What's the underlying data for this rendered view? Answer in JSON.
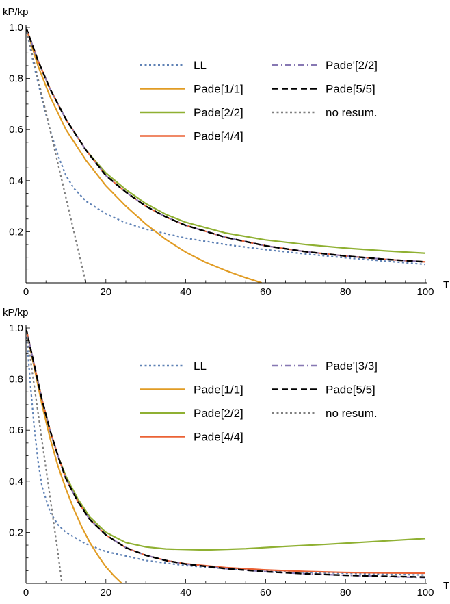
{
  "chart_data": [
    {
      "type": "line",
      "title": "",
      "xlabel": "T",
      "ylabel": "kP/kp",
      "xlim": [
        0,
        100
      ],
      "ylim": [
        0,
        1.0
      ],
      "xticks": [
        0,
        20,
        40,
        60,
        80,
        100
      ],
      "xtick_labels": [
        "0",
        "20",
        "40",
        "60",
        "80",
        "100"
      ],
      "yticks": [
        0.2,
        0.4,
        0.6,
        0.8,
        1.0
      ],
      "ytick_labels": [
        "0.2",
        "0.4",
        "0.6",
        "0.8",
        "1.0"
      ],
      "legend_position": "top-right",
      "series": [
        {
          "name": "LL",
          "color": "#5E81B5",
          "dash": "dotted",
          "points": [
            [
              0,
              1.0
            ],
            [
              2,
              0.85
            ],
            [
              4,
              0.72
            ],
            [
              6,
              0.6
            ],
            [
              8,
              0.5
            ],
            [
              10,
              0.42
            ],
            [
              12,
              0.37
            ],
            [
              15,
              0.32
            ],
            [
              20,
              0.27
            ],
            [
              25,
              0.235
            ],
            [
              30,
              0.21
            ],
            [
              40,
              0.175
            ],
            [
              50,
              0.15
            ],
            [
              60,
              0.13
            ],
            [
              70,
              0.113
            ],
            [
              80,
              0.098
            ],
            [
              90,
              0.085
            ],
            [
              100,
              0.072
            ]
          ]
        },
        {
          "name": "Pade[1/1]",
          "color": "#E19C24",
          "dash": "solid",
          "points": [
            [
              0,
              1.0
            ],
            [
              3,
              0.85
            ],
            [
              6,
              0.73
            ],
            [
              10,
              0.6
            ],
            [
              15,
              0.48
            ],
            [
              20,
              0.38
            ],
            [
              25,
              0.3
            ],
            [
              30,
              0.23
            ],
            [
              35,
              0.17
            ],
            [
              40,
              0.12
            ],
            [
              45,
              0.08
            ],
            [
              50,
              0.048
            ],
            [
              55,
              0.02
            ],
            [
              59,
              0.0
            ]
          ]
        },
        {
          "name": "Pade[2/2]",
          "color": "#8FB032",
          "dash": "solid",
          "points": [
            [
              0,
              1.0
            ],
            [
              3,
              0.87
            ],
            [
              6,
              0.76
            ],
            [
              10,
              0.64
            ],
            [
              15,
              0.52
            ],
            [
              20,
              0.43
            ],
            [
              25,
              0.365
            ],
            [
              30,
              0.31
            ],
            [
              35,
              0.268
            ],
            [
              40,
              0.237
            ],
            [
              50,
              0.195
            ],
            [
              60,
              0.168
            ],
            [
              70,
              0.15
            ],
            [
              80,
              0.136
            ],
            [
              90,
              0.125
            ],
            [
              100,
              0.116
            ]
          ]
        },
        {
          "name": "Pade[4/4]",
          "color": "#EB6235",
          "dash": "solid",
          "points": [
            [
              0,
              1.0
            ],
            [
              3,
              0.87
            ],
            [
              6,
              0.76
            ],
            [
              10,
              0.64
            ],
            [
              15,
              0.52
            ],
            [
              20,
              0.42
            ],
            [
              25,
              0.355
            ],
            [
              30,
              0.3
            ],
            [
              35,
              0.258
            ],
            [
              40,
              0.225
            ],
            [
              50,
              0.178
            ],
            [
              60,
              0.145
            ],
            [
              70,
              0.122
            ],
            [
              80,
              0.105
            ],
            [
              90,
              0.092
            ],
            [
              100,
              0.082
            ]
          ]
        },
        {
          "name": "Pade'[2/2]",
          "color": "#8778B3",
          "dash": "dashdot",
          "points": [
            [
              0,
              1.0
            ],
            [
              3,
              0.87
            ],
            [
              6,
              0.76
            ],
            [
              10,
              0.64
            ],
            [
              15,
              0.52
            ],
            [
              20,
              0.42
            ],
            [
              25,
              0.355
            ],
            [
              30,
              0.3
            ],
            [
              35,
              0.258
            ],
            [
              40,
              0.225
            ],
            [
              50,
              0.178
            ],
            [
              60,
              0.145
            ],
            [
              70,
              0.122
            ],
            [
              80,
              0.105
            ],
            [
              90,
              0.092
            ],
            [
              100,
              0.082
            ]
          ]
        },
        {
          "name": "Pade[5/5]",
          "color": "#000000",
          "dash": "dashed",
          "points": [
            [
              0,
              1.0
            ],
            [
              3,
              0.87
            ],
            [
              6,
              0.76
            ],
            [
              10,
              0.64
            ],
            [
              15,
              0.52
            ],
            [
              20,
              0.42
            ],
            [
              25,
              0.355
            ],
            [
              30,
              0.3
            ],
            [
              35,
              0.258
            ],
            [
              40,
              0.225
            ],
            [
              50,
              0.178
            ],
            [
              60,
              0.145
            ],
            [
              70,
              0.122
            ],
            [
              80,
              0.105
            ],
            [
              90,
              0.092
            ],
            [
              100,
              0.082
            ]
          ]
        },
        {
          "name": "no resum.",
          "color": "#7F7F7F",
          "dash": "dotted",
          "points": [
            [
              0,
              1.0
            ],
            [
              3,
              0.8
            ],
            [
              6,
              0.6
            ],
            [
              9,
              0.4
            ],
            [
              12,
              0.2
            ],
            [
              15,
              0.0
            ]
          ]
        }
      ]
    },
    {
      "type": "line",
      "title": "",
      "xlabel": "T",
      "ylabel": "kP/kp",
      "xlim": [
        0,
        100
      ],
      "ylim": [
        0,
        1.0
      ],
      "xticks": [
        0,
        20,
        40,
        60,
        80,
        100
      ],
      "xtick_labels": [
        "0",
        "20",
        "40",
        "60",
        "80",
        "100"
      ],
      "yticks": [
        0.2,
        0.4,
        0.6,
        0.8,
        1.0
      ],
      "ytick_labels": [
        "0.2",
        "0.4",
        "0.6",
        "0.8",
        "1.0"
      ],
      "legend_position": "top-right",
      "series": [
        {
          "name": "LL",
          "color": "#5E81B5",
          "dash": "dotted",
          "points": [
            [
              0,
              1.0
            ],
            [
              1,
              0.8
            ],
            [
              2,
              0.62
            ],
            [
              3,
              0.48
            ],
            [
              4,
              0.38
            ],
            [
              6,
              0.28
            ],
            [
              8,
              0.23
            ],
            [
              10,
              0.2
            ],
            [
              15,
              0.155
            ],
            [
              20,
              0.125
            ],
            [
              30,
              0.09
            ],
            [
              40,
              0.07
            ],
            [
              50,
              0.058
            ],
            [
              60,
              0.05
            ],
            [
              70,
              0.044
            ],
            [
              80,
              0.04
            ],
            [
              90,
              0.036
            ],
            [
              100,
              0.033
            ]
          ]
        },
        {
          "name": "Pade[1/1]",
          "color": "#E19C24",
          "dash": "solid",
          "points": [
            [
              0,
              1.0
            ],
            [
              2,
              0.85
            ],
            [
              4,
              0.7
            ],
            [
              6,
              0.57
            ],
            [
              8,
              0.46
            ],
            [
              10,
              0.37
            ],
            [
              12,
              0.29
            ],
            [
              14,
              0.22
            ],
            [
              16,
              0.16
            ],
            [
              18,
              0.11
            ],
            [
              20,
              0.065
            ],
            [
              22,
              0.03
            ],
            [
              24,
              0.0
            ]
          ]
        },
        {
          "name": "Pade[2/2]",
          "color": "#8FB032",
          "dash": "solid",
          "points": [
            [
              0,
              1.0
            ],
            [
              2,
              0.86
            ],
            [
              4,
              0.72
            ],
            [
              6,
              0.6
            ],
            [
              8,
              0.5
            ],
            [
              10,
              0.42
            ],
            [
              13,
              0.33
            ],
            [
              16,
              0.26
            ],
            [
              20,
              0.2
            ],
            [
              25,
              0.16
            ],
            [
              30,
              0.143
            ],
            [
              35,
              0.135
            ],
            [
              45,
              0.131
            ],
            [
              55,
              0.136
            ],
            [
              65,
              0.145
            ],
            [
              75,
              0.153
            ],
            [
              85,
              0.162
            ],
            [
              100,
              0.176
            ]
          ]
        },
        {
          "name": "Pade[4/4]",
          "color": "#EB6235",
          "dash": "solid",
          "points": [
            [
              0,
              1.0
            ],
            [
              2,
              0.86
            ],
            [
              4,
              0.72
            ],
            [
              6,
              0.6
            ],
            [
              8,
              0.5
            ],
            [
              10,
              0.41
            ],
            [
              13,
              0.32
            ],
            [
              16,
              0.25
            ],
            [
              20,
              0.19
            ],
            [
              25,
              0.14
            ],
            [
              30,
              0.11
            ],
            [
              35,
              0.09
            ],
            [
              40,
              0.077
            ],
            [
              50,
              0.062
            ],
            [
              60,
              0.053
            ],
            [
              70,
              0.047
            ],
            [
              80,
              0.043
            ],
            [
              90,
              0.041
            ],
            [
              100,
              0.04
            ]
          ]
        },
        {
          "name": "Pade'[3/3]",
          "color": "#8778B3",
          "dash": "dashdot",
          "points": [
            [
              0,
              1.0
            ],
            [
              2,
              0.86
            ],
            [
              4,
              0.72
            ],
            [
              6,
              0.6
            ],
            [
              8,
              0.5
            ],
            [
              10,
              0.41
            ],
            [
              13,
              0.32
            ],
            [
              16,
              0.25
            ],
            [
              20,
              0.19
            ],
            [
              25,
              0.14
            ],
            [
              30,
              0.11
            ],
            [
              35,
              0.09
            ],
            [
              40,
              0.076
            ],
            [
              50,
              0.058
            ],
            [
              60,
              0.046
            ],
            [
              70,
              0.038
            ],
            [
              80,
              0.032
            ],
            [
              90,
              0.027
            ],
            [
              100,
              0.023
            ]
          ]
        },
        {
          "name": "Pade[5/5]",
          "color": "#000000",
          "dash": "dashed",
          "points": [
            [
              0,
              1.0
            ],
            [
              2,
              0.86
            ],
            [
              4,
              0.72
            ],
            [
              6,
              0.6
            ],
            [
              8,
              0.5
            ],
            [
              10,
              0.41
            ],
            [
              13,
              0.32
            ],
            [
              16,
              0.25
            ],
            [
              20,
              0.19
            ],
            [
              25,
              0.14
            ],
            [
              30,
              0.11
            ],
            [
              35,
              0.09
            ],
            [
              40,
              0.076
            ],
            [
              50,
              0.058
            ],
            [
              60,
              0.046
            ],
            [
              70,
              0.038
            ],
            [
              80,
              0.032
            ],
            [
              90,
              0.028
            ],
            [
              100,
              0.025
            ]
          ]
        },
        {
          "name": "no resum.",
          "color": "#7F7F7F",
          "dash": "dotted",
          "points": [
            [
              0,
              1.0
            ],
            [
              2,
              0.78
            ],
            [
              4,
              0.56
            ],
            [
              6,
              0.34
            ],
            [
              8,
              0.12
            ],
            [
              9,
              0.0
            ]
          ]
        }
      ]
    }
  ]
}
